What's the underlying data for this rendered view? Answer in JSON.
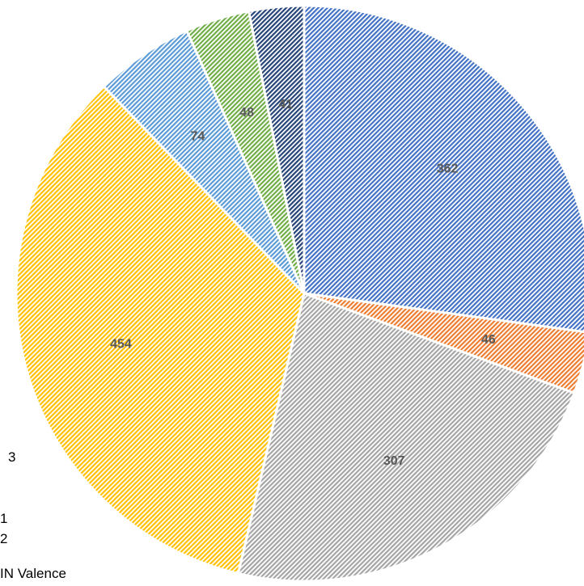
{
  "chart_data": {
    "type": "pie",
    "start_angle_deg": 0,
    "direction": "clockwise",
    "fill_style": "diagonal-hatch",
    "slices": [
      {
        "value": 362,
        "label": "362",
        "color": "#4472C4"
      },
      {
        "value": 46,
        "label": "46",
        "color": "#ED7D31"
      },
      {
        "value": 307,
        "label": "307",
        "color": "#A5A5A5"
      },
      {
        "value": 454,
        "label": "454",
        "color": "#FFC000"
      },
      {
        "value": 74,
        "label": "74",
        "color": "#5B9BD5"
      },
      {
        "value": 48,
        "label": "48",
        "color": "#70AD47"
      },
      {
        "value": 41,
        "label": "41",
        "color": "#264478"
      }
    ]
  },
  "side_text": {
    "line_3": "3",
    "line_1": "1",
    "line_2": "2",
    "valence": "IN Valence"
  }
}
